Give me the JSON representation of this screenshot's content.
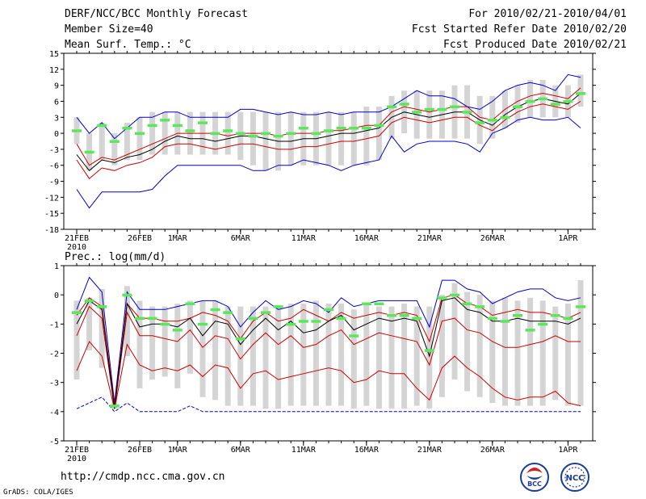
{
  "header": {
    "title": "DERF/NCC/BCC Monthly Forecast",
    "member_size": "Member Size=40",
    "variable": "Mean Surf. Temp.: °C",
    "forecast_period": "For 2010/02/21-2010/04/01",
    "started": "Fcst Started Refer Date 2010/02/20",
    "produced": "Fcst Produced Date 2010/02/21"
  },
  "footer": {
    "url": "http://cmdp.ncc.cma.gov.cn",
    "credit": "GrADS: COLA/IGES",
    "logo_left": "BCC",
    "logo_right": "NCC"
  },
  "colors": {
    "ensemble_max_min": "#0000cc",
    "mean": "#000000",
    "spread": "#cc0000",
    "box": "#d4d4d4",
    "marker": "#5ae85a"
  },
  "chart_data": [
    {
      "type": "box",
      "title": "Mean Surf. Temp.: °C",
      "ylim": [
        -18,
        15
      ],
      "yticks": [
        15,
        12,
        9,
        6,
        3,
        0,
        -3,
        -6,
        -9,
        -12,
        -15,
        -18
      ],
      "xtick_labels": [
        {
          "day": 0,
          "label": "21FEB",
          "sub": "2010"
        },
        {
          "day": 5,
          "label": "26FEB"
        },
        {
          "day": 8,
          "label": "1MAR"
        },
        {
          "day": 13,
          "label": "6MAR"
        },
        {
          "day": 18,
          "label": "11MAR"
        },
        {
          "day": 23,
          "label": "16MAR"
        },
        {
          "day": 28,
          "label": "21MAR"
        },
        {
          "day": 33,
          "label": "26MAR"
        },
        {
          "day": 39,
          "label": "1APR"
        }
      ],
      "series": {
        "max": [
          3,
          0,
          2,
          -1,
          1,
          3,
          3,
          4,
          4,
          3,
          3,
          3,
          3,
          4.5,
          4.5,
          4,
          3.5,
          4,
          3.5,
          3.5,
          4,
          3.5,
          4,
          4,
          4,
          5,
          6.5,
          8,
          7,
          7,
          6.5,
          5,
          4.5,
          6,
          8,
          9,
          9.5,
          9,
          8,
          11,
          10.5
        ],
        "upper": [
          -2,
          -6,
          -4.5,
          -5,
          -4,
          -3,
          -2,
          -1,
          0,
          0,
          0,
          0,
          -0.5,
          0,
          0,
          0,
          -0.5,
          0,
          0,
          0,
          0.5,
          0.5,
          1,
          1.5,
          1.5,
          4,
          5,
          4.5,
          4,
          4.5,
          5,
          5,
          3,
          2.5,
          4.5,
          6,
          7,
          7.5,
          7,
          6.5,
          8.5
        ],
        "mean": [
          -4,
          -7,
          -5,
          -5.5,
          -4.5,
          -4,
          -3,
          -1.5,
          -0.5,
          -1,
          -1,
          -1.5,
          -1,
          -0.5,
          -0.5,
          -1,
          -1.5,
          -1.5,
          -1,
          -1,
          -0.5,
          0,
          0,
          0.5,
          1,
          3,
          4,
          3.5,
          3,
          3.5,
          4,
          4,
          2.5,
          1.5,
          3.5,
          5,
          6,
          6.5,
          6,
          5.5,
          7.5
        ],
        "lower": [
          -5,
          -8.5,
          -6.5,
          -7,
          -6,
          -5.5,
          -4.5,
          -2.5,
          -2,
          -2,
          -2.5,
          -3,
          -2.5,
          -2,
          -2,
          -2.5,
          -3,
          -3,
          -2.5,
          -2.5,
          -2,
          -1.5,
          -1.5,
          -1,
          -0.5,
          2,
          3,
          2.5,
          2,
          2.5,
          3,
          3,
          1.5,
          0.5,
          2.5,
          4,
          5,
          5.5,
          5,
          4.5,
          6
        ],
        "min": [
          -10.5,
          -14,
          -11,
          -11,
          -11,
          -11,
          -10.5,
          -8,
          -6,
          -6,
          -6,
          -6,
          -6,
          -6,
          -7,
          -7,
          -6,
          -6,
          -5,
          -5.5,
          -6,
          -7,
          -6,
          -5.5,
          -5,
          -0.5,
          -3.5,
          -2,
          -1.5,
          -1.5,
          -1.5,
          -2,
          -3.5,
          0,
          1,
          2.5,
          3,
          2.5,
          2.5,
          3,
          1
        ],
        "box_top": [
          3,
          0,
          2,
          0,
          2,
          3,
          4,
          4,
          4,
          4,
          4,
          4,
          4,
          4,
          4,
          4,
          4,
          4,
          4,
          4,
          4,
          4,
          4,
          5,
          5,
          7,
          8,
          8,
          8,
          8,
          9,
          9,
          7,
          7,
          8,
          9,
          10,
          10,
          9,
          9,
          11
        ],
        "box_bottom": [
          -2,
          -7,
          -5,
          -6,
          -5,
          -5,
          -4,
          -4,
          -4,
          -4,
          -4,
          -4,
          -4,
          -5,
          -6,
          -7,
          -7,
          -6,
          -6,
          -6,
          -6,
          -6,
          -6,
          -6,
          -5,
          -1,
          0,
          -1,
          -1,
          -1,
          -1,
          -1,
          -2,
          -1,
          1,
          2,
          3,
          3,
          3,
          3,
          5
        ],
        "marker": [
          0.5,
          -3.5,
          1.5,
          -1.5,
          1,
          0,
          1.5,
          2.5,
          1.5,
          0.5,
          2,
          0,
          0.5,
          0,
          -0.5,
          0,
          -0.5,
          0,
          1,
          0,
          0.5,
          1,
          1,
          1,
          1.5,
          5,
          5.5,
          4,
          4.5,
          4.5,
          5,
          4,
          2,
          2.5,
          3,
          5,
          6,
          6.5,
          5.5,
          6,
          7.5
        ]
      }
    },
    {
      "type": "box",
      "title": "Prec.: log(mm/d)",
      "ylim": [
        -5,
        1
      ],
      "yticks": [
        1,
        0,
        -1,
        -2,
        -3,
        -4,
        -5
      ],
      "xtick_labels": [
        {
          "day": 0,
          "label": "21FEB",
          "sub": "2010"
        },
        {
          "day": 5,
          "label": "26FEB"
        },
        {
          "day": 8,
          "label": "1MAR"
        },
        {
          "day": 13,
          "label": "6MAR"
        },
        {
          "day": 18,
          "label": "11MAR"
        },
        {
          "day": 23,
          "label": "16MAR"
        },
        {
          "day": 28,
          "label": "21MAR"
        },
        {
          "day": 33,
          "label": "26MAR"
        },
        {
          "day": 39,
          "label": "1APR"
        }
      ],
      "series": {
        "max": [
          -0.5,
          0.6,
          0.1,
          -3.7,
          0.1,
          -0.5,
          -0.5,
          -0.5,
          -0.4,
          -0.3,
          -0.2,
          -0.2,
          -0.4,
          -1.1,
          -0.6,
          -0.2,
          -0.5,
          -0.4,
          -0.2,
          -0.3,
          -0.6,
          -0.1,
          -0.4,
          -0.3,
          -0.2,
          -0.2,
          -0.2,
          -0.2,
          -1.1,
          0.5,
          0.5,
          0.2,
          0.1,
          -0.3,
          -0.1,
          0.1,
          0.2,
          0.2,
          -0.1,
          -0.2,
          -0.1
        ],
        "upper": [
          -0.7,
          -0.1,
          -0.4,
          -3.8,
          -0.3,
          -0.8,
          -0.8,
          -0.9,
          -0.9,
          -0.8,
          -0.6,
          -0.7,
          -0.9,
          -1.5,
          -0.9,
          -0.6,
          -0.9,
          -0.8,
          -0.5,
          -0.7,
          -0.9,
          -0.6,
          -0.8,
          -0.7,
          -0.6,
          -0.7,
          -0.6,
          -0.7,
          -1.6,
          -0.1,
          0.0,
          -0.3,
          -0.4,
          -0.7,
          -0.6,
          -0.5,
          -0.6,
          -0.6,
          -0.7,
          -0.8,
          -0.6
        ],
        "mean": [
          -1.0,
          -0.2,
          -0.5,
          -3.9,
          -0.3,
          -1.1,
          -1.0,
          -1.0,
          -1.1,
          -0.8,
          -1.4,
          -0.9,
          -1.0,
          -1.7,
          -1.2,
          -0.8,
          -1.2,
          -0.9,
          -1.3,
          -1.2,
          -0.9,
          -0.7,
          -1.2,
          -1.0,
          -0.8,
          -0.9,
          -0.8,
          -0.9,
          -2.1,
          -0.2,
          -0.1,
          -0.5,
          -0.6,
          -0.9,
          -0.9,
          -0.8,
          -0.9,
          -0.9,
          -0.9,
          -1.0,
          -0.8
        ],
        "lower": [
          -1.4,
          -0.4,
          -0.8,
          -3.9,
          -0.6,
          -1.4,
          -1.4,
          -1.5,
          -1.6,
          -1.2,
          -1.8,
          -1.4,
          -1.5,
          -2.2,
          -1.7,
          -1.3,
          -1.7,
          -1.4,
          -1.8,
          -1.7,
          -1.4,
          -1.2,
          -1.7,
          -1.5,
          -1.3,
          -1.4,
          -1.5,
          -1.6,
          -2.4,
          -0.9,
          -0.8,
          -1.2,
          -1.3,
          -1.6,
          -1.8,
          -1.8,
          -1.7,
          -1.6,
          -1.4,
          -1.6,
          -1.6
        ],
        "bottom": [
          -2.6,
          -1.6,
          -2.1,
          -3.9,
          -1.7,
          -2.4,
          -2.6,
          -2.5,
          -2.6,
          -2.4,
          -2.8,
          -2.4,
          -2.5,
          -3.2,
          -2.7,
          -2.6,
          -2.9,
          -2.8,
          -2.7,
          -2.6,
          -2.5,
          -2.6,
          -3.0,
          -2.9,
          -2.6,
          -2.7,
          -2.7,
          -3.2,
          -3.6,
          -2.5,
          -2.1,
          -2.5,
          -2.8,
          -3.2,
          -3.5,
          -3.6,
          -3.5,
          -3.5,
          -3.3,
          -3.7,
          -3.8
        ],
        "min": [
          -3.9,
          -3.7,
          -3.5,
          -4.0,
          -3.7,
          -4.0,
          -4.0,
          -4.0,
          -4.0,
          -3.8,
          -4.0,
          -4.0,
          -4.0,
          -4.0,
          -4.0,
          -4.0,
          -4.0,
          -4.0,
          -4.0,
          -4.0,
          -4.0,
          -4.0,
          -4.0,
          -4.0,
          -4.0,
          -4.0,
          -4.0,
          -4.0,
          -4.0,
          -4.0,
          -4.0,
          -4.0,
          -4.0,
          -4.0,
          -4.0,
          -4.0,
          -4.0,
          -4.0,
          -4.0,
          -4.0,
          -4.0
        ],
        "box_top": [
          -0.2,
          -0.1,
          0.2,
          -3.5,
          0.3,
          -0.2,
          -0.4,
          -0.4,
          -0.3,
          -0.2,
          -0.2,
          -0.2,
          -0.4,
          -0.4,
          -0.4,
          -0.4,
          -0.4,
          -0.3,
          -0.3,
          -0.2,
          -0.3,
          -0.3,
          -0.5,
          -0.3,
          -0.4,
          -0.4,
          -0.3,
          -0.4,
          -0.4,
          0.0,
          0.4,
          0.1,
          0.0,
          -0.2,
          -0.1,
          -0.2,
          -0.1,
          -0.2,
          -0.4,
          -0.3,
          0.5
        ],
        "box_bottom": [
          -2.9,
          -1.9,
          -2.5,
          -3.9,
          -2.1,
          -3.2,
          -2.9,
          -2.8,
          -3.2,
          -2.7,
          -3.5,
          -3.6,
          -3.8,
          -3.8,
          -3.8,
          -3.9,
          -3.9,
          -3.8,
          -3.8,
          -3.8,
          -3.8,
          -3.8,
          -3.9,
          -3.8,
          -3.9,
          -3.9,
          -3.9,
          -3.8,
          -3.9,
          -3.5,
          -2.9,
          -3.3,
          -3.5,
          -3.7,
          -3.8,
          -3.8,
          -3.8,
          -3.8,
          -3.6,
          -3.8,
          -3.8
        ],
        "marker": [
          -0.6,
          -0.2,
          -0.4,
          -3.8,
          0.0,
          -0.8,
          -0.8,
          -1.0,
          -1.2,
          -0.3,
          -1.0,
          -0.5,
          -0.6,
          -1.5,
          -0.8,
          -0.6,
          -0.4,
          -1.0,
          -0.9,
          -0.9,
          -0.5,
          -0.8,
          -1.4,
          -0.3,
          -0.3,
          -0.7,
          -0.7,
          -0.8,
          -1.9,
          -0.1,
          0.0,
          -0.3,
          -0.4,
          -0.8,
          -0.9,
          -0.7,
          -1.2,
          -1.0,
          -0.7,
          -0.8,
          -0.4
        ]
      }
    }
  ]
}
